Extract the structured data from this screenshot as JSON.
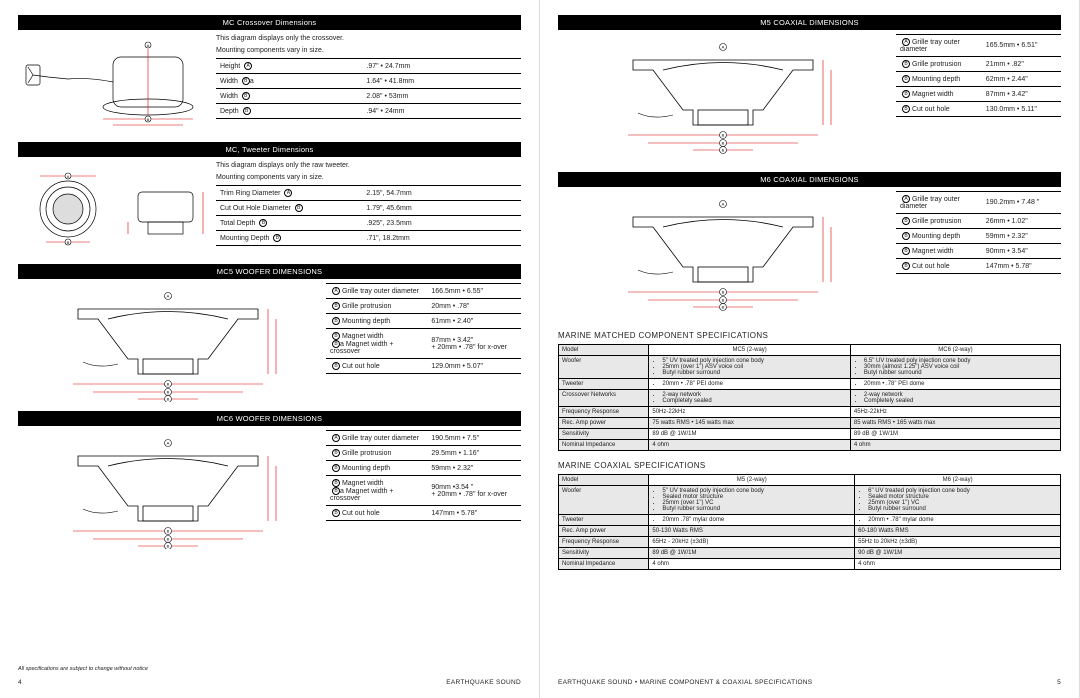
{
  "left": {
    "sections": {
      "crossover": {
        "header": "MC Crossover Dimensions",
        "note1": "This diagram displays only the crossover.",
        "note2": "Mounting components vary in size.",
        "rows": [
          {
            "label": "Height ",
            "sym": "A",
            "val": ".97\" • 24.7mm"
          },
          {
            "label": "Width ",
            "sym": "B",
            "sub": "a",
            "val": "1.64\" • 41.8mm"
          },
          {
            "label": "Width ",
            "sym": "B",
            "val": "2.08\" • 53mm"
          },
          {
            "label": "Depth ",
            "sym": "B",
            "val": ".94\" • 24mm"
          }
        ]
      },
      "tweeter": {
        "header": "MC, Tweeter Dimensions",
        "note1": "This diagram displays only the raw tweeter.",
        "note2": "Mounting components vary in size.",
        "rows": [
          {
            "label": "Trim Ring Diameter ",
            "sym": "A",
            "val": "2.15\", 54.7mm"
          },
          {
            "label": "Cut Out Hole Diameter ",
            "sym": "B",
            "val": "1.79\", 45.6mm"
          },
          {
            "label": "Total Depth ",
            "sym": "B",
            "val": ".925\", 23.5mm"
          },
          {
            "label": "Mounting Depth ",
            "sym": "B",
            "val": ".71\", 18.2tmm"
          }
        ]
      },
      "mc5woofer": {
        "header": "MC5 WOOFER DIMENSIONS",
        "rows": [
          {
            "sym": "A",
            "label": " Grille tray outer diameter",
            "val": "166.5mm • 6.55\""
          },
          {
            "sym": "B",
            "label": " Grille protrusion",
            "val": "20mm • .78\""
          },
          {
            "sym": "B",
            "label": " Mounting depth",
            "val": "61mm • 2.40\""
          },
          {
            "sym": "B",
            "label": " Magnet width",
            "sub": "a Magnet width + crossover",
            "val": "87mm • 3.42\"",
            "val2": "+ 20mm • .78\" for x-over"
          },
          {
            "sym": "B",
            "label": " Cut out hole",
            "val": "129.0mm • 5.07\""
          }
        ]
      },
      "mc6woofer": {
        "header": "MC6 WOOFER DIMENSIONS",
        "rows": [
          {
            "sym": "A",
            "label": " Grille tray outer diameter",
            "val": "190.5mm • 7.5\""
          },
          {
            "sym": "B",
            "label": " Grille protrusion",
            "val": "29.5mm • 1.16\""
          },
          {
            "sym": "B",
            "label": " Mounting depth",
            "val": "59mm • 2.32\""
          },
          {
            "sym": "B",
            "label": " Magnet width",
            "sub": "a Magnet width + crossover",
            "val": "90mm •3.54 \"",
            "val2": "+ 20mm • .78\" for x-over"
          },
          {
            "sym": "B",
            "label": " Cut out hole",
            "val": "147mm • 5.78\""
          }
        ]
      }
    },
    "footnote": "All specifications are subject to change without notice",
    "pagenum": "4",
    "brand": "EARTHQUAKE SOUND"
  },
  "right": {
    "sections": {
      "m5coax": {
        "header": "M5 COAXIAL DIMENSIONS",
        "rows": [
          {
            "sym": "A",
            "label": " Grille tray outer diameter",
            "val": "165.5mm • 6.51\""
          },
          {
            "sym": "B",
            "label": " Grille protrusion",
            "val": "21mm • .82\""
          },
          {
            "sym": "B",
            "label": " Mounting depth",
            "val": "62mm • 2.44\""
          },
          {
            "sym": "B",
            "label": " Magnet width",
            "val": "87mm • 3.42\""
          },
          {
            "sym": "B",
            "label": " Cut out hole",
            "val": "130.0mm • 5.11\""
          }
        ]
      },
      "m6coax": {
        "header": "M6 COAXIAL DIMENSIONS",
        "rows": [
          {
            "sym": "A",
            "label": " Grille tray outer diameter",
            "val": "190.2mm • 7.48 \""
          },
          {
            "sym": "B",
            "label": " Grille protrusion",
            "val": "26mm • 1.02\""
          },
          {
            "sym": "B",
            "label": " Mounting depth",
            "val": "59mm • 2.32\""
          },
          {
            "sym": "B",
            "label": " Magnet width",
            "val": "90mm • 3.54\""
          },
          {
            "sym": "B",
            "label": " Cut out hole",
            "val": "147mm • 5.78\""
          }
        ]
      }
    },
    "spec1": {
      "title": "MARINE MATCHED COMPONENT SPECIFICATIONS",
      "col1": "MC5 (2-way)",
      "col2": "MC6 (2-way)",
      "rows": [
        {
          "label": "Model",
          "shade": false,
          "c1": "MC5 (2-way)",
          "c2": "MC6 (2-way)",
          "center": true
        },
        {
          "label": "Woofer",
          "shade": true,
          "c1": [
            "5\" UV treated poly injection cone body",
            "25mm (over 1\") ASV voice coil",
            "Butyl rubber surround"
          ],
          "c2": [
            "6.5\" UV treated poly injection cone body",
            "30mm (almost 1.25\") ASV voice coil",
            "Butyl rubber surround"
          ]
        },
        {
          "label": "Tweeter",
          "shade": false,
          "c1": [
            "20mm • .78\" PEI dome"
          ],
          "c2": [
            "20mm • .78\" PEI dome"
          ]
        },
        {
          "label": "Crossover Networks",
          "shade": true,
          "c1": [
            "2-way network",
            "Completely sealed"
          ],
          "c2": [
            "2-way network",
            "Completely sealed"
          ]
        },
        {
          "label": "Frequency Response",
          "shade": false,
          "c1": "50Hz-22kHz",
          "c2": "45Hz-22kHz"
        },
        {
          "label": "Rec. Amp power",
          "shade": true,
          "c1": "75 watts RMS • 145 watts max",
          "c2": "85 watts RMS • 165 watts max"
        },
        {
          "label": "Sensitivity",
          "shade": false,
          "c1": "89 dB @ 1W/1M",
          "c2": "89 dB @ 1W/1M"
        },
        {
          "label": "Nominal Impedance",
          "shade": true,
          "c1": "4 ohm",
          "c2": "4 ohm"
        }
      ]
    },
    "spec2": {
      "title": "MARINE COAXIAL SPECIFICATIONS",
      "rows": [
        {
          "label": "Model",
          "shade": false,
          "c1": "M5 (2-way)",
          "c2": "M6 (2-way)",
          "center": true
        },
        {
          "label": "Woofer",
          "shade": true,
          "c1": [
            "5\" UV treated poly injection cone body",
            "Sealed motor structure",
            "25mm (over 1\") VC",
            "Butyl rubber surround"
          ],
          "c2": [
            "6\" UV treated poly injection cone body",
            "Sealed motor structure",
            "25mm (over 1\") VC",
            "Butyl rubber surround"
          ]
        },
        {
          "label": "Tweeter",
          "shade": false,
          "c1": [
            "20mm .78\" mylar dome"
          ],
          "c2": [
            "20mm • .78\" mylar dome"
          ]
        },
        {
          "label": "Rec. Amp power",
          "shade": true,
          "c1": "50-130 Watts RMS",
          "c2": "60-180 Watts RMS"
        },
        {
          "label": "Frequency Response",
          "shade": false,
          "c1": "65Hz - 20kHz (±3dB)",
          "c2": "55Hz to 20kHz (±3dB)"
        },
        {
          "label": "Sensitivity",
          "shade": true,
          "c1": "89 dB @ 1W/1M",
          "c2": "90 dB @ 1W/1M"
        },
        {
          "label": "Nominal Impedance",
          "shade": false,
          "c1": "4 ohm",
          "c2": "4 ohm"
        }
      ]
    },
    "footerleft": "EARTHQUAKE SOUND • MARINE COMPONENT &  COAXIAL SPECIFICATIONS",
    "pagenum": "5"
  }
}
